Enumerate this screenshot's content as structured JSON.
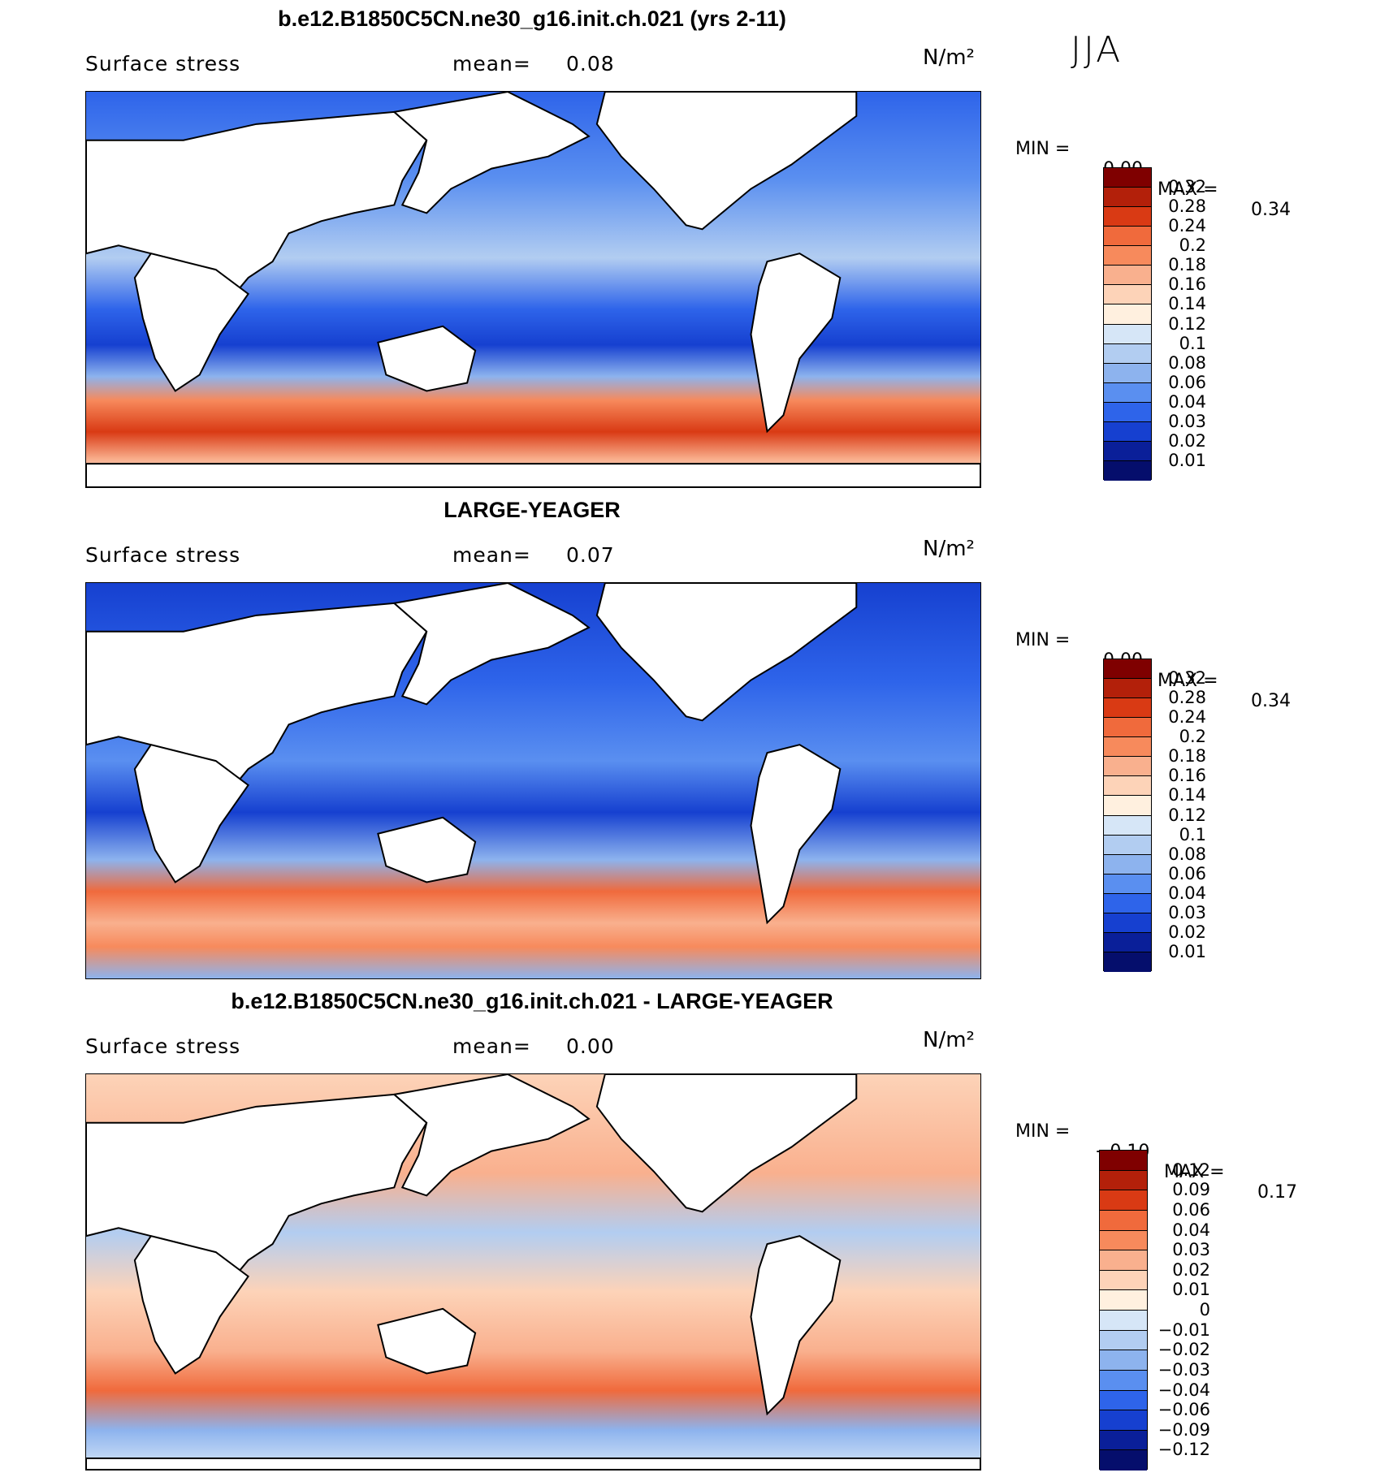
{
  "figure": {
    "season": "JJA",
    "panels": [
      {
        "title": "b.e12.B1850C5CN.ne30_g16.init.ch.021 (yrs 2-11)",
        "variable": "Surface stress",
        "mean_label": "mean=",
        "mean_value": "0.08",
        "units": "N/m²",
        "min_label": "MIN =",
        "min_value": "0.00",
        "max_label": "MAX =",
        "max_value": "0.34",
        "colorbar_labels": [
          "0.32",
          "0.28",
          "0.24",
          "0.2",
          "0.18",
          "0.16",
          "0.14",
          "0.12",
          "0.1",
          "0.08",
          "0.06",
          "0.04",
          "0.03",
          "0.02",
          "0.01"
        ]
      },
      {
        "title": "LARGE-YEAGER",
        "variable": "Surface stress",
        "mean_label": "mean=",
        "mean_value": "0.07",
        "units": "N/m²",
        "min_label": "MIN =",
        "min_value": "0.00",
        "max_label": "MAX =",
        "max_value": "0.34",
        "colorbar_labels": [
          "0.32",
          "0.28",
          "0.24",
          "0.2",
          "0.18",
          "0.16",
          "0.14",
          "0.12",
          "0.1",
          "0.08",
          "0.06",
          "0.04",
          "0.03",
          "0.02",
          "0.01"
        ]
      },
      {
        "title": "b.e12.B1850C5CN.ne30_g16.init.ch.021 - LARGE-YEAGER",
        "variable": "Surface stress",
        "mean_label": "mean=",
        "mean_value": "0.00",
        "units": "N/m²",
        "min_label": "MIN =",
        "min_value": "−0.10",
        "max_label": "MAX =",
        "max_value": "0.17",
        "colorbar_labels": [
          "0.12",
          "0.09",
          "0.06",
          "0.04",
          "0.03",
          "0.02",
          "0.01",
          "0",
          "−0.01",
          "−0.02",
          "−0.03",
          "−0.04",
          "−0.06",
          "−0.09",
          "−0.12"
        ]
      }
    ],
    "colors": {
      "seq_scale": [
        "#7f0000",
        "#b3200a",
        "#d93a14",
        "#f06a3c",
        "#f78a5c",
        "#f9b08e",
        "#fdd3b8",
        "#fff0df",
        "#d6e6f7",
        "#b2cdf1",
        "#8db3ee",
        "#5a8ff0",
        "#2e64ea",
        "#1640d0",
        "#0a1f99",
        "#050e6c"
      ],
      "diff_scale": [
        "#7f0000",
        "#b3200a",
        "#d93a14",
        "#f06a3c",
        "#f78a5c",
        "#f9b08e",
        "#fdd3b8",
        "#fff0df",
        "#d6e6f7",
        "#b2cdf1",
        "#8db3ee",
        "#5a8ff0",
        "#2e64ea",
        "#1640d0",
        "#0a1f99",
        "#050e6c"
      ]
    }
  },
  "chart_data": [
    {
      "type": "heatmap",
      "title": "b.e12.B1850C5CN.ne30_g16.init.ch.021 (yrs 2-11)",
      "field": "Surface stress",
      "units": "N/m²",
      "season": "JJA",
      "mean": 0.08,
      "min": 0.0,
      "max": 0.34,
      "contour_levels": [
        0.01,
        0.02,
        0.03,
        0.04,
        0.06,
        0.08,
        0.1,
        0.12,
        0.14,
        0.16,
        0.18,
        0.2,
        0.24,
        0.28,
        0.32
      ]
    },
    {
      "type": "heatmap",
      "title": "LARGE-YEAGER",
      "field": "Surface stress",
      "units": "N/m²",
      "season": "JJA",
      "mean": 0.07,
      "min": 0.0,
      "max": 0.34,
      "contour_levels": [
        0.01,
        0.02,
        0.03,
        0.04,
        0.06,
        0.08,
        0.1,
        0.12,
        0.14,
        0.16,
        0.18,
        0.2,
        0.24,
        0.28,
        0.32
      ]
    },
    {
      "type": "heatmap",
      "title": "b.e12.B1850C5CN.ne30_g16.init.ch.021 - LARGE-YEAGER",
      "field": "Surface stress",
      "units": "N/m²",
      "season": "JJA",
      "mean": 0.0,
      "min": -0.1,
      "max": 0.17,
      "contour_levels": [
        -0.12,
        -0.09,
        -0.06,
        -0.04,
        -0.03,
        -0.02,
        -0.01,
        0,
        0.01,
        0.02,
        0.03,
        0.04,
        0.06,
        0.09,
        0.12
      ]
    }
  ]
}
